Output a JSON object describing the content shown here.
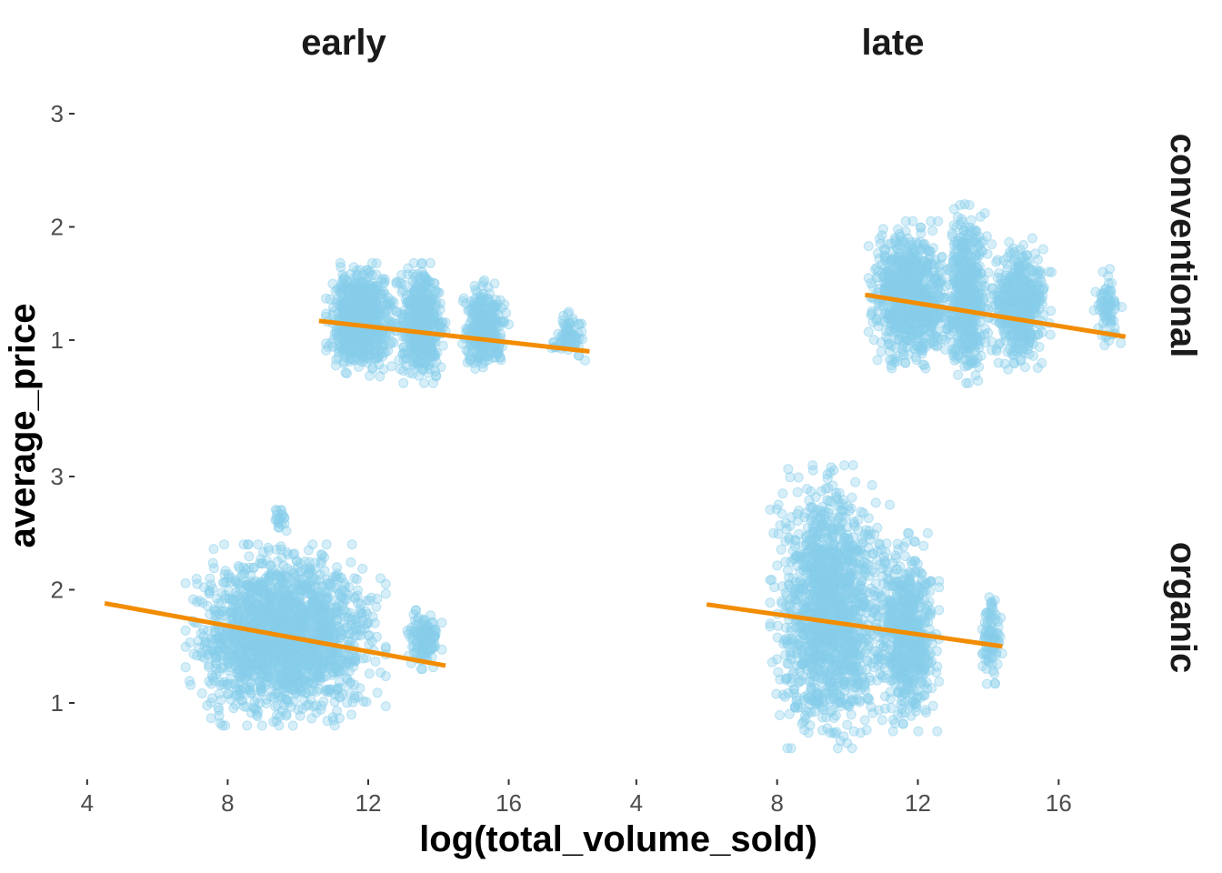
{
  "chart_data": {
    "type": "scatter",
    "xlabel": "log(total_volume_sold)",
    "ylabel": "average_price",
    "col_facets": [
      "early",
      "late"
    ],
    "row_facets": [
      "conventional",
      "organic"
    ],
    "x_ticks": [
      4,
      8,
      12,
      16
    ],
    "y_ticks": [
      1,
      2,
      3
    ],
    "x_tick_labels": [
      "4",
      "8",
      "12",
      "16"
    ],
    "y_tick_labels": [
      "1",
      "2",
      "3"
    ],
    "xlim": [
      3.9,
      18.6
    ],
    "ylim_by_row": {
      "conventional": [
        0.55,
        3.05
      ],
      "organic": [
        0.45,
        3.05
      ]
    },
    "grid": false,
    "colors": {
      "points": "#87CEEB",
      "trend_line": "#F28C00"
    },
    "panels": [
      {
        "row": "conventional",
        "col": "early",
        "trend_line": {
          "x": [
            10.6,
            18.3
          ],
          "y": [
            1.17,
            0.9
          ]
        },
        "clusters": [
          {
            "x": [
              10.8,
              12.8
            ],
            "y": [
              0.68,
              1.68
            ],
            "n": 700
          },
          {
            "x": [
              12.8,
              14.2
            ],
            "y": [
              0.62,
              1.68
            ],
            "n": 500
          },
          {
            "x": [
              14.6,
              16.0
            ],
            "y": [
              0.7,
              1.55
            ],
            "n": 300
          },
          {
            "x": [
              17.2,
              18.2
            ],
            "y": [
              0.82,
              1.25
            ],
            "n": 70
          }
        ]
      },
      {
        "row": "conventional",
        "col": "late",
        "trend_line": {
          "x": [
            10.5,
            17.9
          ],
          "y": [
            1.4,
            1.03
          ]
        },
        "clusters": [
          {
            "x": [
              10.6,
              13.0
            ],
            "y": [
              0.75,
              2.05
            ],
            "n": 800
          },
          {
            "x": [
              12.8,
              14.0
            ],
            "y": [
              0.62,
              2.2
            ],
            "n": 500
          },
          {
            "x": [
              14.0,
              15.8
            ],
            "y": [
              0.72,
              1.9
            ],
            "n": 450
          },
          {
            "x": [
              17.0,
              17.8
            ],
            "y": [
              0.85,
              1.7
            ],
            "n": 70
          }
        ]
      },
      {
        "row": "organic",
        "col": "early",
        "trend_line": {
          "x": [
            4.5,
            14.2
          ],
          "y": [
            1.88,
            1.33
          ]
        },
        "clusters": [
          {
            "x": [
              6.8,
              12.5
            ],
            "y": [
              0.8,
              2.4
            ],
            "n": 1800
          },
          {
            "x": [
              13.1,
              14.1
            ],
            "y": [
              1.3,
              1.82
            ],
            "n": 120
          },
          {
            "x": [
              9.3,
              9.7
            ],
            "y": [
              2.5,
              2.78
            ],
            "n": 20
          }
        ]
      },
      {
        "row": "organic",
        "col": "late",
        "trend_line": {
          "x": [
            6.0,
            14.4
          ],
          "y": [
            1.87,
            1.5
          ]
        },
        "clusters": [
          {
            "x": [
              7.8,
              11.2
            ],
            "y": [
              0.6,
              3.1
            ],
            "n": 1400
          },
          {
            "x": [
              10.8,
              12.6
            ],
            "y": [
              0.75,
              2.5
            ],
            "n": 600
          },
          {
            "x": [
              13.8,
              14.4
            ],
            "y": [
              1.15,
              2.05
            ],
            "n": 90
          }
        ]
      }
    ]
  }
}
